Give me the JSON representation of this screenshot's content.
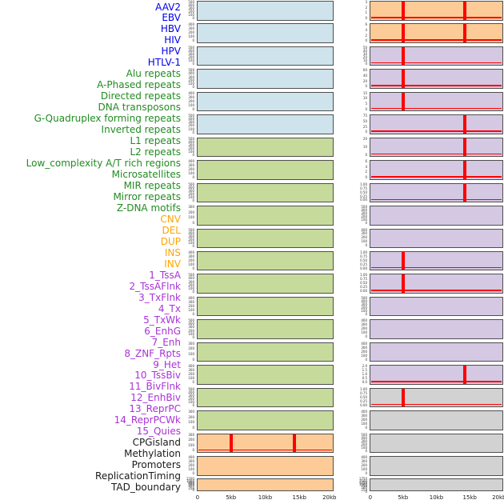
{
  "colors": {
    "label_colors": {
      "blue": "#0000EE",
      "green": "#228B22",
      "orange": "#FFA500",
      "purple": "#A832D8",
      "black": "#1A1A1A"
    },
    "panel_colors": {
      "blue": "#CEE3EB",
      "green": "#C6DB9B",
      "orange": "#FCCB97",
      "purple": "#D4C8E2",
      "gray": "#D2D2D2"
    },
    "signal_color": "#FF0000",
    "panel_border_color": "#4F4F4F"
  },
  "chart_data": {
    "type": "line",
    "layout": "small-multiples, 22 rows x 2 columns; features 1-22 in left column, 23-44 in right column; row labels listed down the left side",
    "x_axis": {
      "range_kb": [
        0,
        20
      ],
      "tick_labels": [
        "0",
        "5kb",
        "10kb",
        "15kb",
        "20kb"
      ],
      "tick_positions_kb": [
        0,
        5,
        10,
        15,
        20
      ]
    },
    "signal_description": "red curve flat at zero with sharp spikes at ~5kb and ~14.3kb in some panels",
    "features": [
      {
        "label": "AAV2",
        "group": "blue",
        "panel": "blue",
        "y_ticks": [
          "500",
          "400",
          "300",
          "200",
          "100",
          "0"
        ],
        "spikes_kb": []
      },
      {
        "label": "EBV",
        "group": "blue",
        "panel": "blue",
        "y_ticks": [
          "400",
          "300",
          "200",
          "100",
          "0"
        ],
        "spikes_kb": []
      },
      {
        "label": "HBV",
        "group": "blue",
        "panel": "blue",
        "y_ticks": [
          "500",
          "400",
          "300",
          "200",
          "100",
          "0"
        ],
        "spikes_kb": []
      },
      {
        "label": "HIV",
        "group": "blue",
        "panel": "blue",
        "y_ticks": [
          "500",
          "400",
          "300",
          "200",
          "100",
          "0"
        ],
        "spikes_kb": []
      },
      {
        "label": "HPV",
        "group": "blue",
        "panel": "blue",
        "y_ticks": [
          "400",
          "300",
          "200",
          "100",
          "0"
        ],
        "spikes_kb": []
      },
      {
        "label": "HTLV-1",
        "group": "blue",
        "panel": "blue",
        "y_ticks": [
          "500",
          "400",
          "300",
          "200",
          "100",
          "0"
        ],
        "spikes_kb": []
      },
      {
        "label": "Alu repeats",
        "group": "green",
        "panel": "green",
        "y_ticks": [
          "500",
          "400",
          "300",
          "200",
          "100",
          "0"
        ],
        "spikes_kb": []
      },
      {
        "label": "A-Phased repeats",
        "group": "green",
        "panel": "green",
        "y_ticks": [
          "400",
          "300",
          "200",
          "100",
          "0"
        ],
        "spikes_kb": []
      },
      {
        "label": "Directed repeats",
        "group": "green",
        "panel": "green",
        "y_ticks": [
          "500",
          "400",
          "300",
          "200",
          "100",
          "0"
        ],
        "spikes_kb": []
      },
      {
        "label": "DNA transposons",
        "group": "green",
        "panel": "green",
        "y_ticks": [
          "300",
          "200",
          "100",
          "0"
        ],
        "spikes_kb": []
      },
      {
        "label": "G-Quadruplex forming repeats",
        "group": "green",
        "panel": "green",
        "y_ticks": [
          "500",
          "400",
          "300",
          "200",
          "100",
          "0"
        ],
        "spikes_kb": []
      },
      {
        "label": "Inverted repeats",
        "group": "green",
        "panel": "green",
        "y_ticks": [
          "400",
          "300",
          "200",
          "100",
          "0"
        ],
        "spikes_kb": []
      },
      {
        "label": "L1 repeats",
        "group": "green",
        "panel": "green",
        "y_ticks": [
          "500",
          "400",
          "300",
          "200",
          "100",
          "0"
        ],
        "spikes_kb": []
      },
      {
        "label": "L2 repeats",
        "group": "green",
        "panel": "green",
        "y_ticks": [
          "400",
          "300",
          "200",
          "100",
          "0"
        ],
        "spikes_kb": []
      },
      {
        "label": "Low_complexity A/T rich regions",
        "group": "green",
        "panel": "green",
        "y_ticks": [
          "500",
          "400",
          "300",
          "200",
          "100",
          "0"
        ],
        "spikes_kb": []
      },
      {
        "label": "Microsatellites",
        "group": "green",
        "panel": "green",
        "y_ticks": [
          "300",
          "200",
          "100",
          "0"
        ],
        "spikes_kb": []
      },
      {
        "label": "MIR repeats",
        "group": "green",
        "panel": "green",
        "y_ticks": [
          "400",
          "300",
          "200",
          "100",
          "0"
        ],
        "spikes_kb": []
      },
      {
        "label": "Mirror repeats",
        "group": "green",
        "panel": "green",
        "y_ticks": [
          "500",
          "400",
          "300",
          "200",
          "100",
          "0"
        ],
        "spikes_kb": []
      },
      {
        "label": "Z-DNA motifs",
        "group": "green",
        "panel": "green",
        "y_ticks": [
          "300",
          "200",
          "100",
          "0"
        ],
        "spikes_kb": []
      },
      {
        "label": "CNV",
        "group": "orange",
        "panel": "orange",
        "y_ticks": [
          "300",
          "200",
          "100",
          "0"
        ],
        "spikes_kb": [
          5,
          14.3
        ]
      },
      {
        "label": "DEL",
        "group": "orange",
        "panel": "orange",
        "y_ticks": [
          "400",
          "300",
          "200",
          "100",
          "0"
        ],
        "spikes_kb": []
      },
      {
        "label": "DUP",
        "group": "orange",
        "panel": "orange",
        "y_ticks": [
          "1200",
          "1000",
          "800",
          "600",
          "400",
          "200",
          "0"
        ],
        "spikes_kb": []
      },
      {
        "label": "INS",
        "group": "orange",
        "panel": "orange",
        "y_ticks": [
          "3",
          "2",
          "1",
          "0"
        ],
        "spikes_kb": [
          5,
          14.3
        ]
      },
      {
        "label": "INV",
        "group": "orange",
        "panel": "orange",
        "y_ticks": [
          "6",
          "4",
          "2",
          "0"
        ],
        "spikes_kb": [
          5,
          14.3
        ]
      },
      {
        "label": "1_TssA",
        "group": "purple",
        "panel": "purple",
        "y_ticks": [
          "50",
          "40",
          "30",
          "20",
          "10",
          "0"
        ],
        "spikes_kb": [
          5
        ]
      },
      {
        "label": "2_TssAFlnk",
        "group": "purple",
        "panel": "purple",
        "y_ticks": [
          "60",
          "40",
          "20",
          "0"
        ],
        "spikes_kb": [
          5
        ]
      },
      {
        "label": "3_TxFlnk",
        "group": "purple",
        "panel": "purple",
        "y_ticks": [
          "15",
          "10",
          "5",
          "0"
        ],
        "spikes_kb": [
          5
        ]
      },
      {
        "label": "4_Tx",
        "group": "purple",
        "panel": "purple",
        "y_ticks": [
          "75",
          "50",
          "25",
          "0"
        ],
        "spikes_kb": [
          14.3
        ]
      },
      {
        "label": "5_TxWk",
        "group": "purple",
        "panel": "purple",
        "y_ticks": [
          "20",
          "10",
          "0"
        ],
        "spikes_kb": [
          14.3
        ]
      },
      {
        "label": "6_EnhG",
        "group": "purple",
        "panel": "purple",
        "y_ticks": [
          "6",
          "4",
          "2",
          "0"
        ],
        "spikes_kb": [
          14.3
        ]
      },
      {
        "label": "7_Enh",
        "group": "purple",
        "panel": "purple",
        "y_ticks": [
          "1.00",
          "0.75",
          "0.50",
          "0.25",
          "0.00"
        ],
        "spikes_kb": [
          14.3
        ]
      },
      {
        "label": "8_ZNF_Rpts",
        "group": "purple",
        "panel": "purple",
        "y_ticks": [
          "500",
          "400",
          "300",
          "200",
          "100",
          "0"
        ],
        "spikes_kb": []
      },
      {
        "label": "9_Het",
        "group": "purple",
        "panel": "purple",
        "y_ticks": [
          "400",
          "300",
          "200",
          "100",
          "0"
        ],
        "spikes_kb": []
      },
      {
        "label": "10_TssBiv",
        "group": "purple",
        "panel": "purple",
        "y_ticks": [
          "1.00",
          "0.75",
          "0.50",
          "0.25",
          "0.00"
        ],
        "spikes_kb": [
          5
        ]
      },
      {
        "label": "11_BivFlnk",
        "group": "purple",
        "panel": "purple",
        "y_ticks": [
          "1.00",
          "0.75",
          "0.50",
          "0.25",
          "0.00"
        ],
        "spikes_kb": [
          5
        ]
      },
      {
        "label": "12_EnhBiv",
        "group": "purple",
        "panel": "purple",
        "y_ticks": [
          "500",
          "400",
          "300",
          "200",
          "100",
          "0"
        ],
        "spikes_kb": []
      },
      {
        "label": "13_ReprPC",
        "group": "purple",
        "panel": "purple",
        "y_ticks": [
          "400",
          "300",
          "200",
          "100",
          "0"
        ],
        "spikes_kb": []
      },
      {
        "label": "14_ReprPCWk",
        "group": "purple",
        "panel": "purple",
        "y_ticks": [
          "400",
          "300",
          "200",
          "100",
          "0"
        ],
        "spikes_kb": []
      },
      {
        "label": "15_Quies",
        "group": "purple",
        "panel": "purple",
        "y_ticks": [
          "2.0",
          "1.5",
          "1.0",
          "0.5",
          "0.0"
        ],
        "spikes_kb": [
          14.3
        ]
      },
      {
        "label": "CPGisland",
        "group": "black",
        "panel": "gray",
        "y_ticks": [
          "1.00",
          "0.75",
          "0.50",
          "0.25",
          "0.00"
        ],
        "spikes_kb": [
          5
        ]
      },
      {
        "label": "Methylation",
        "group": "black",
        "panel": "gray",
        "y_ticks": [
          "400",
          "300",
          "200",
          "100",
          "0"
        ],
        "spikes_kb": []
      },
      {
        "label": "Promoters",
        "group": "black",
        "panel": "gray",
        "y_ticks": [
          "500",
          "400",
          "300",
          "200",
          "100",
          "0"
        ],
        "spikes_kb": []
      },
      {
        "label": "ReplicationTiming",
        "group": "black",
        "panel": "gray",
        "y_ticks": [
          "400",
          "300",
          "200",
          "100",
          "0"
        ],
        "spikes_kb": []
      },
      {
        "label": "TAD_boundary",
        "group": "black",
        "panel": "gray",
        "y_ticks": [
          "1750",
          "1500",
          "1250",
          "1000",
          "750",
          "500",
          "250",
          "0"
        ],
        "spikes_kb": []
      }
    ]
  }
}
